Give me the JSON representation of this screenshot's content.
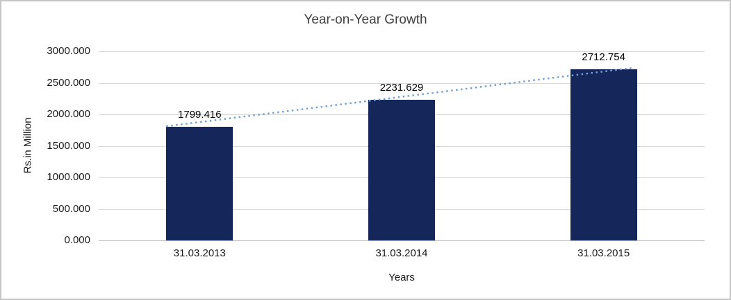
{
  "chart_data": {
    "type": "bar",
    "title": "Year-on-Year Growth",
    "xlabel": "Years",
    "ylabel": "Rs.in Million",
    "categories": [
      "31.03.2013",
      "31.03.2014",
      "31.03.2015"
    ],
    "values": [
      1799.416,
      2231.629,
      2712.754
    ],
    "data_labels": [
      "1799.416",
      "2231.629",
      "2712.754"
    ],
    "y_ticks": [
      {
        "value": 0,
        "label": "0.000"
      },
      {
        "value": 500,
        "label": "500.000"
      },
      {
        "value": 1000,
        "label": "1000.000"
      },
      {
        "value": 1500,
        "label": "1500.000"
      },
      {
        "value": 2000,
        "label": "2000.000"
      },
      {
        "value": 2500,
        "label": "2500.000"
      },
      {
        "value": 3000,
        "label": "3000.000"
      }
    ],
    "ylim": [
      0,
      3000
    ],
    "grid": true,
    "legend": "none",
    "bar_color": "#15265B",
    "trendline": {
      "style": "dotted",
      "color": "#6FA0D6"
    }
  }
}
